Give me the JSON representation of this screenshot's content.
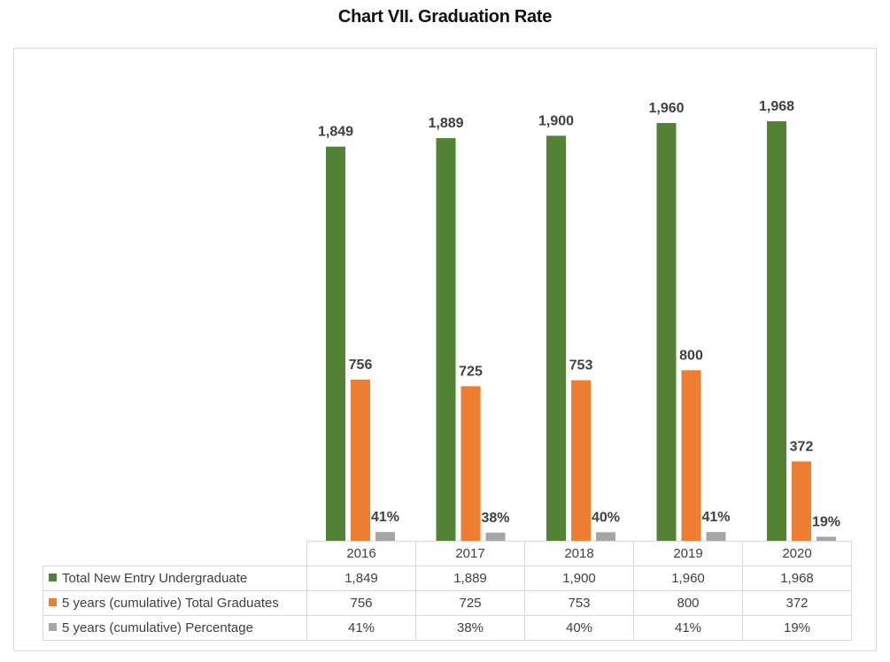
{
  "title": "Chart VII. Graduation Rate",
  "chart_data": {
    "type": "bar",
    "title": "Chart VII. Graduation Rate",
    "categories": [
      "2016",
      "2017",
      "2018",
      "2019",
      "2020"
    ],
    "ylim": [
      0,
      2400
    ],
    "grid": false,
    "legend": "data table below chart",
    "series": [
      {
        "name": "Total New Entry Undergraduate",
        "color": "#538135",
        "values": [
          1849,
          1889,
          1900,
          1960,
          1968
        ],
        "labels": [
          "1,849",
          "1,889",
          "1,900",
          "1,960",
          "1,968"
        ]
      },
      {
        "name": "5 years (cumulative) Total Graduates",
        "color": "#ed7d31",
        "values": [
          756,
          725,
          753,
          800,
          372
        ],
        "labels": [
          "756",
          "725",
          "753",
          "800",
          "372"
        ]
      },
      {
        "name": "5 years (cumulative) Percentage",
        "color": "#a5a5a5",
        "values": [
          41,
          38,
          40,
          41,
          19
        ],
        "labels": [
          "41%",
          "38%",
          "40%",
          "41%",
          "19%"
        ]
      }
    ]
  }
}
